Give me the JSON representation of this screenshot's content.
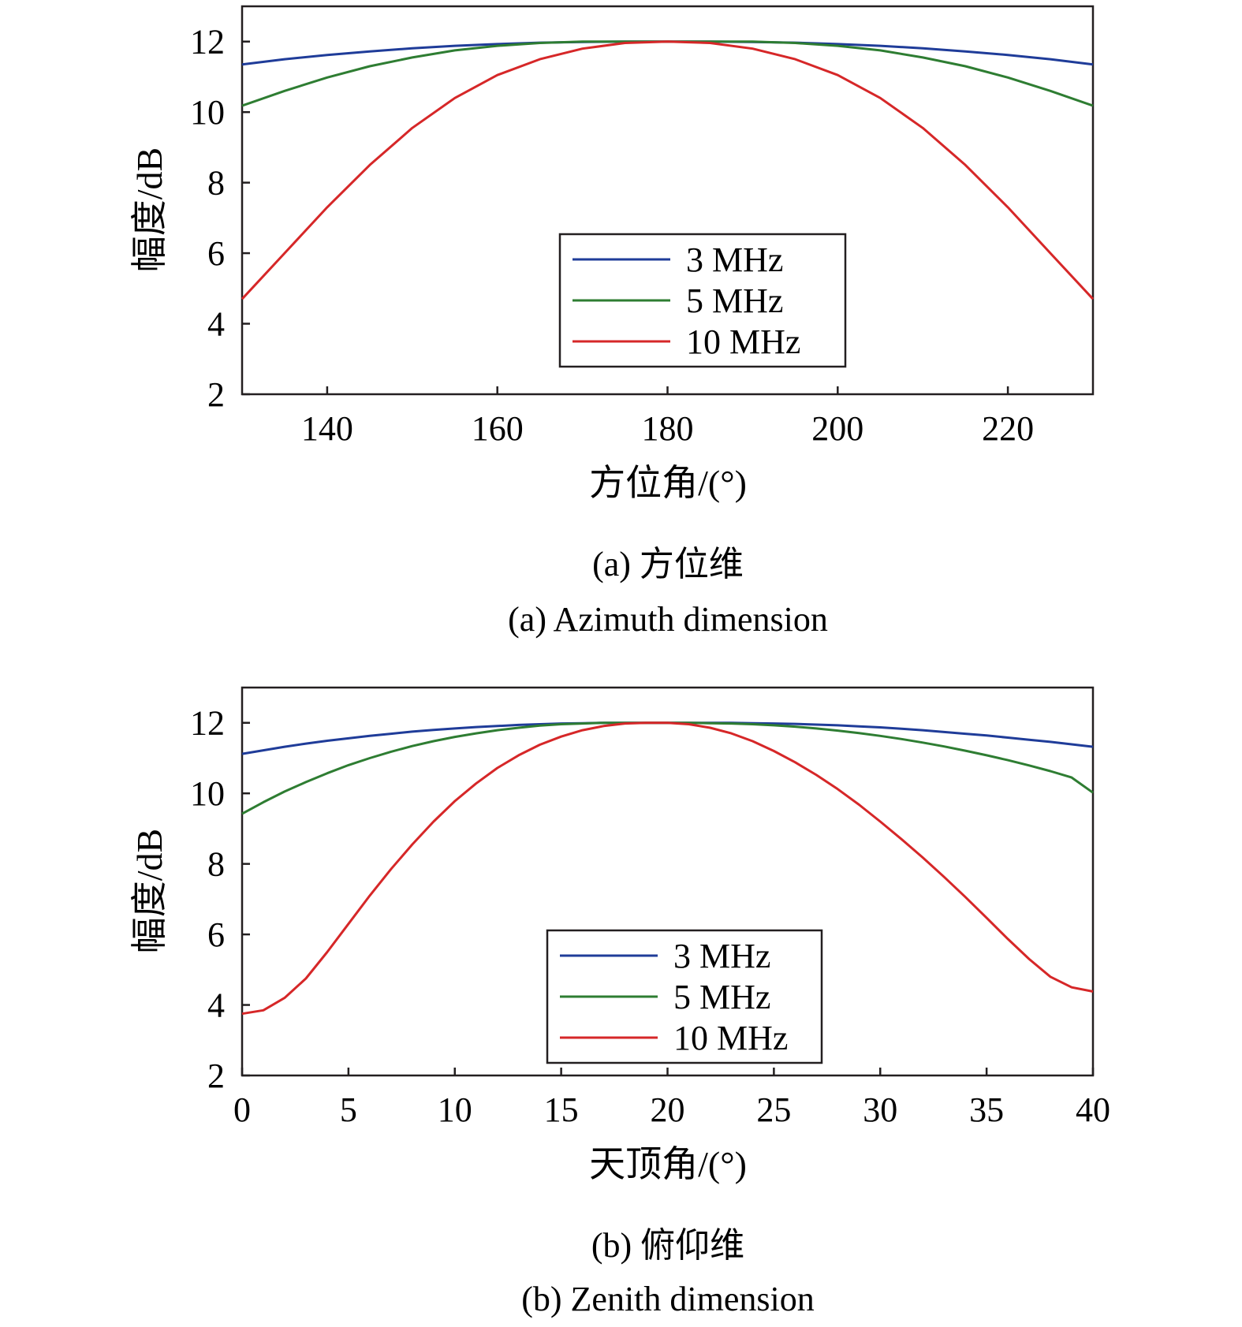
{
  "chart_data": [
    {
      "type": "line",
      "caption_cn": "(a) 方位维",
      "caption_en": "(a) Azimuth dimension",
      "xlabel": "方位角/(°)",
      "ylabel": "幅度/dB",
      "xlim": [
        130,
        230
      ],
      "ylim": [
        2,
        13
      ],
      "xticks": [
        140,
        160,
        180,
        200,
        220
      ],
      "yticks": [
        2,
        4,
        6,
        8,
        10,
        12
      ],
      "grid": false,
      "legend_position": "center-right",
      "x": [
        130,
        135,
        140,
        145,
        150,
        155,
        160,
        165,
        170,
        175,
        180,
        185,
        190,
        195,
        200,
        205,
        210,
        215,
        220,
        225,
        230
      ],
      "series": [
        {
          "name": "3 MHz",
          "color": "#1f3c99",
          "values": [
            11.35,
            11.5,
            11.62,
            11.72,
            11.81,
            11.88,
            11.93,
            11.97,
            11.99,
            12.0,
            12.0,
            12.0,
            11.99,
            11.97,
            11.93,
            11.88,
            11.81,
            11.72,
            11.62,
            11.5,
            11.35
          ]
        },
        {
          "name": "5 MHz",
          "color": "#2e7d32",
          "values": [
            10.18,
            10.6,
            10.98,
            11.3,
            11.55,
            11.75,
            11.88,
            11.96,
            12.0,
            12.0,
            12.0,
            12.0,
            12.0,
            11.96,
            11.88,
            11.75,
            11.55,
            11.3,
            10.98,
            10.6,
            10.18
          ]
        },
        {
          "name": "10 MHz",
          "color": "#d62728",
          "values": [
            4.7,
            6.0,
            7.3,
            8.5,
            9.55,
            10.4,
            11.05,
            11.5,
            11.8,
            11.96,
            12.0,
            11.96,
            11.8,
            11.5,
            11.05,
            10.4,
            9.55,
            8.5,
            7.3,
            6.0,
            4.7
          ]
        }
      ]
    },
    {
      "type": "line",
      "caption_cn": "(b) 俯仰维",
      "caption_en": "(b) Zenith dimension",
      "xlabel": "天顶角/(°)",
      "ylabel": "幅度/dB",
      "xlim": [
        0,
        40
      ],
      "ylim": [
        2,
        13
      ],
      "xticks": [
        0,
        5,
        10,
        15,
        20,
        25,
        30,
        35,
        40
      ],
      "yticks": [
        2,
        4,
        6,
        8,
        10,
        12
      ],
      "grid": false,
      "legend_position": "center-right",
      "x": [
        0,
        1,
        2,
        3,
        4,
        5,
        6,
        7,
        8,
        9,
        10,
        11,
        12,
        13,
        14,
        15,
        16,
        17,
        18,
        19,
        20,
        21,
        22,
        23,
        24,
        25,
        26,
        27,
        28,
        29,
        30,
        31,
        32,
        33,
        34,
        35,
        36,
        37,
        38,
        39,
        40
      ],
      "series": [
        {
          "name": "3 MHz",
          "color": "#1f3c99",
          "values": [
            11.12,
            11.22,
            11.32,
            11.41,
            11.49,
            11.56,
            11.63,
            11.69,
            11.75,
            11.8,
            11.84,
            11.88,
            11.91,
            11.94,
            11.96,
            11.98,
            11.99,
            12.0,
            12.0,
            12.0,
            12.0,
            12.0,
            12.0,
            12.0,
            11.99,
            11.98,
            11.97,
            11.95,
            11.93,
            11.9,
            11.87,
            11.83,
            11.79,
            11.74,
            11.69,
            11.64,
            11.58,
            11.52,
            11.46,
            11.39,
            11.32
          ]
        },
        {
          "name": "5 MHz",
          "color": "#2e7d32",
          "values": [
            9.42,
            9.75,
            10.05,
            10.32,
            10.57,
            10.8,
            11.0,
            11.18,
            11.34,
            11.48,
            11.6,
            11.7,
            11.79,
            11.86,
            11.92,
            11.96,
            11.98,
            12.0,
            12.0,
            12.0,
            12.0,
            12.0,
            11.99,
            11.98,
            11.96,
            11.93,
            11.89,
            11.84,
            11.78,
            11.71,
            11.63,
            11.54,
            11.44,
            11.33,
            11.21,
            11.08,
            10.94,
            10.79,
            10.63,
            10.45,
            10.02
          ]
        },
        {
          "name": "10 MHz",
          "color": "#d62728",
          "values": [
            3.75,
            3.85,
            4.2,
            4.75,
            5.5,
            6.3,
            7.1,
            7.85,
            8.55,
            9.2,
            9.78,
            10.28,
            10.72,
            11.08,
            11.38,
            11.61,
            11.79,
            11.91,
            11.98,
            12.0,
            12.0,
            11.96,
            11.86,
            11.7,
            11.48,
            11.2,
            10.88,
            10.52,
            10.12,
            9.68,
            9.2,
            8.7,
            8.18,
            7.63,
            7.06,
            6.47,
            5.87,
            5.3,
            4.8,
            4.5,
            4.38
          ]
        }
      ]
    }
  ]
}
